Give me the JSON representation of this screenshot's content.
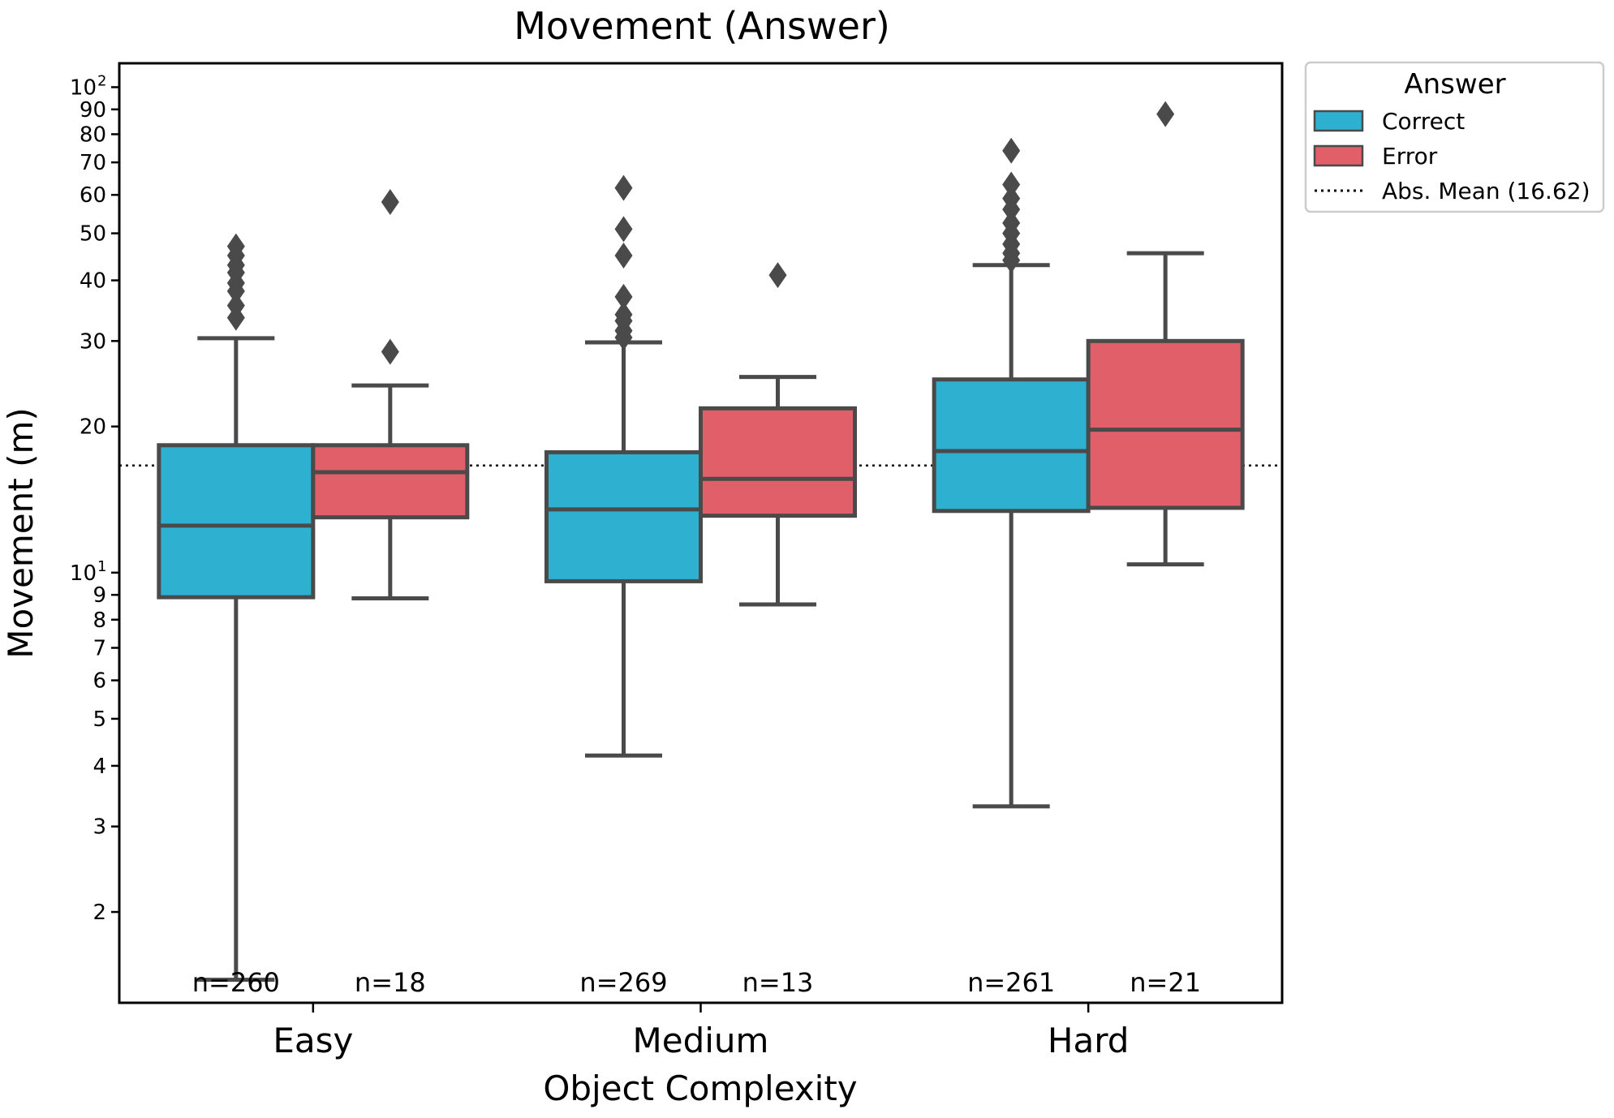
{
  "chart_data": {
    "type": "box",
    "title": "Movement (Answer)",
    "xlabel": "Object Complexity",
    "ylabel": "Movement (m)",
    "yscale": "log",
    "ylim": [
      1.3,
      112
    ],
    "categories": [
      "Easy",
      "Medium",
      "Hard"
    ],
    "y_ticks": [
      {
        "value": 2,
        "label": "2"
      },
      {
        "value": 3,
        "label": "3"
      },
      {
        "value": 4,
        "label": "4"
      },
      {
        "value": 5,
        "label": "5"
      },
      {
        "value": 6,
        "label": "6"
      },
      {
        "value": 7,
        "label": "7"
      },
      {
        "value": 8,
        "label": "8"
      },
      {
        "value": 9,
        "label": "9"
      },
      {
        "value": 10,
        "label": "10",
        "exponent": "1"
      },
      {
        "value": 20,
        "label": "20"
      },
      {
        "value": 30,
        "label": "30"
      },
      {
        "value": 40,
        "label": "40"
      },
      {
        "value": 50,
        "label": "50"
      },
      {
        "value": 60,
        "label": "60"
      },
      {
        "value": 70,
        "label": "70"
      },
      {
        "value": 80,
        "label": "80"
      },
      {
        "value": 90,
        "label": "90"
      },
      {
        "value": 100,
        "label": "10",
        "exponent": "2"
      }
    ],
    "reference_line": {
      "label": "Abs. Mean (16.62)",
      "value": 16.62,
      "style": "dotted",
      "color": "#000000"
    },
    "legend": {
      "title": "Answer",
      "location": "outside-right-top"
    },
    "series": [
      {
        "name": "Correct",
        "color": "#2EB0D0",
        "boxes": [
          {
            "category": "Easy",
            "whisker_low": 1.45,
            "q1": 8.9,
            "median": 12.5,
            "q3": 18.3,
            "whisker_high": 30.4,
            "outliers": [
              33.5,
              35.5,
              38.0,
              39.5,
              41.5,
              43.0,
              45.0,
              47.0
            ],
            "n_label": "n=260"
          },
          {
            "category": "Medium",
            "whisker_low": 4.2,
            "q1": 9.6,
            "median": 13.5,
            "q3": 17.7,
            "whisker_high": 29.8,
            "outliers": [
              30.5,
              31.5,
              33.0,
              34.0,
              37.0,
              45.0,
              51.0,
              62.0
            ],
            "n_label": "n=269"
          },
          {
            "category": "Hard",
            "whisker_low": 3.3,
            "q1": 13.4,
            "median": 17.8,
            "q3": 25.0,
            "whisker_high": 43.0,
            "outliers": [
              44.0,
              45.5,
              47.5,
              50.0,
              52.5,
              56.0,
              59.0,
              63.0,
              74.0
            ],
            "n_label": "n=261"
          }
        ]
      },
      {
        "name": "Error",
        "color": "#E05F68",
        "boxes": [
          {
            "category": "Easy",
            "whisker_low": 8.85,
            "q1": 13.0,
            "median": 16.1,
            "q3": 18.3,
            "whisker_high": 24.3,
            "outliers": [
              28.5,
              58.0
            ],
            "n_label": "n=18"
          },
          {
            "category": "Medium",
            "whisker_low": 8.6,
            "q1": 13.1,
            "median": 15.6,
            "q3": 21.8,
            "whisker_high": 25.3,
            "outliers": [
              41.0
            ],
            "n_label": "n=13"
          },
          {
            "category": "Hard",
            "whisker_low": 10.4,
            "q1": 13.6,
            "median": 19.7,
            "q3": 30.0,
            "whisker_high": 45.5,
            "outliers": [
              88.0
            ],
            "n_label": "n=21"
          }
        ]
      }
    ]
  }
}
